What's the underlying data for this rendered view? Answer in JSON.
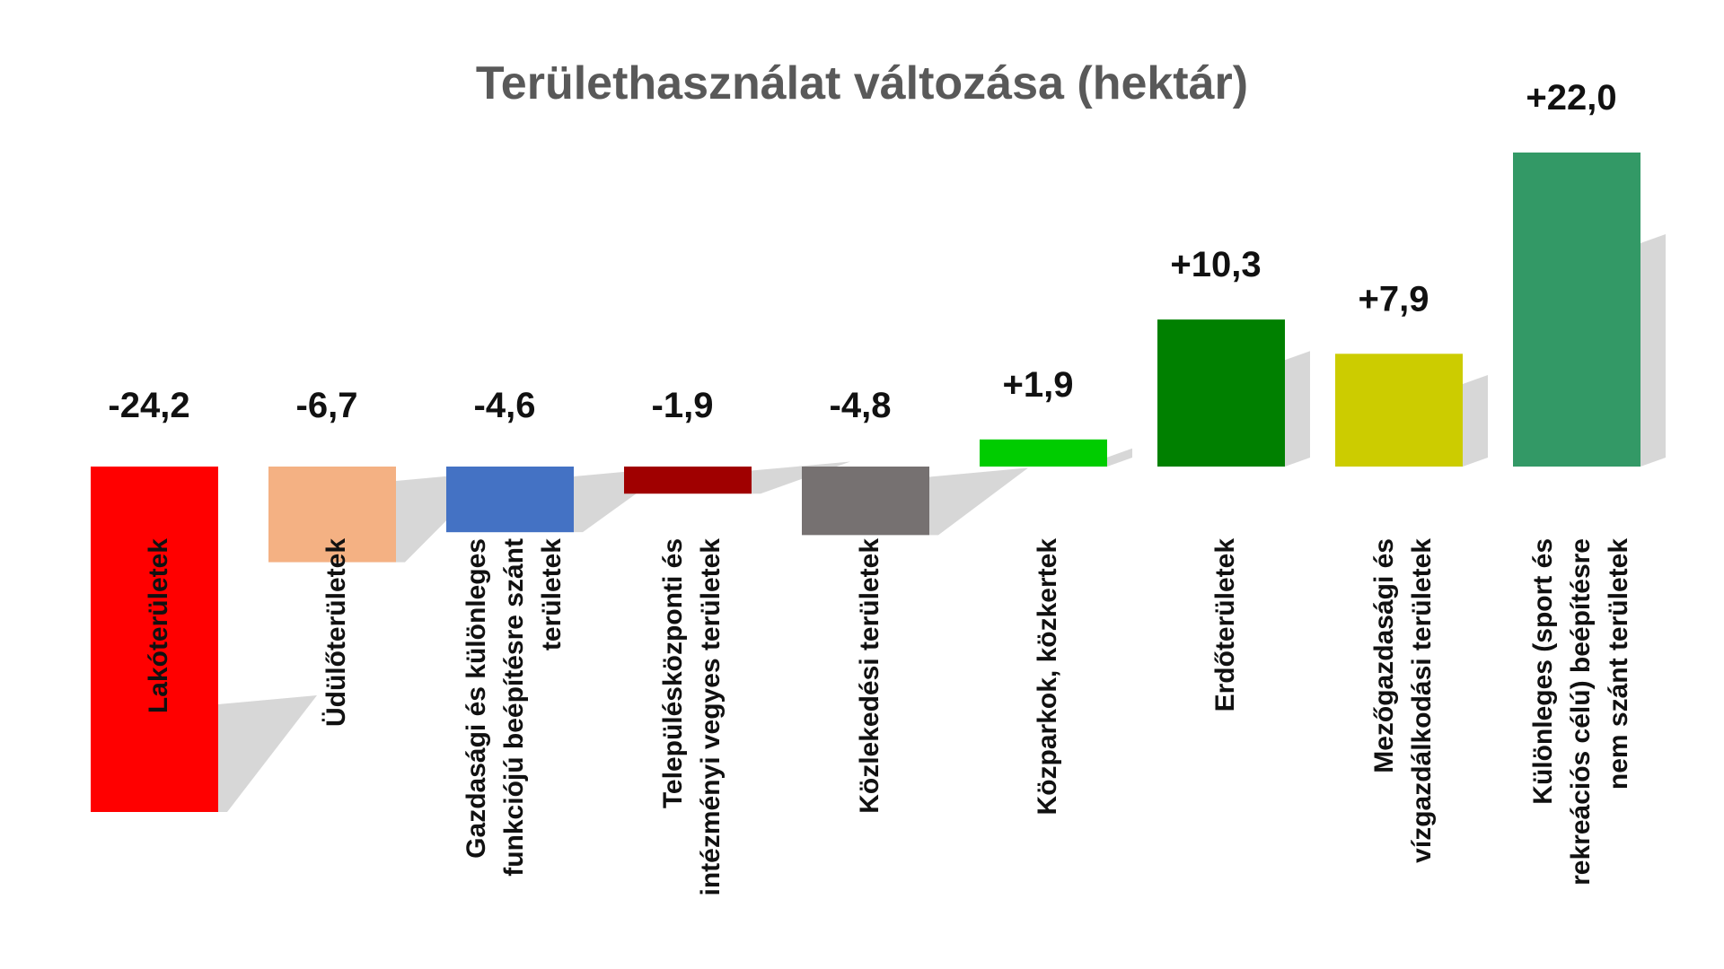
{
  "chart_data": {
    "type": "bar",
    "title": "Területhasználat változása (hektár)",
    "xlabel": "",
    "ylabel": "",
    "ylim": [
      -24.2,
      22.0
    ],
    "grid": false,
    "legend": "none",
    "categories": [
      {
        "lines": [
          "Lakóterületek"
        ]
      },
      {
        "lines": [
          "Üdülőterületek"
        ]
      },
      {
        "lines": [
          "Gazdasági és különleges",
          "funkciójú beépítésre szánt",
          "területek"
        ]
      },
      {
        "lines": [
          "Településközponti és",
          "intézményi vegyes területek"
        ]
      },
      {
        "lines": [
          "Közlekedési területek"
        ]
      },
      {
        "lines": [
          "Közparkok, közkertek"
        ]
      },
      {
        "lines": [
          "Erdőterületek"
        ]
      },
      {
        "lines": [
          "Mezőgazdasági és",
          "vízgazdálkodási területek"
        ]
      },
      {
        "lines": [
          "Különleges (sport és",
          "rekreációs célú) beépítésre",
          "nem szánt területek"
        ]
      }
    ],
    "values": [
      -24.2,
      -6.7,
      -4.6,
      -1.9,
      -4.8,
      1.9,
      10.3,
      7.9,
      22.0
    ],
    "value_labels": [
      "-24,2",
      "-6,7",
      "-4,6",
      "-1,9",
      "-4,8",
      "+1,9",
      "+10,3",
      "+7,9",
      "+22,0"
    ],
    "colors": [
      "#ff0000",
      "#f4b183",
      "#4472c4",
      "#a00000",
      "#767171",
      "#00cc00",
      "#008000",
      "#cccc00",
      "#339966"
    ],
    "shadow_color": "#d0d0d0"
  }
}
